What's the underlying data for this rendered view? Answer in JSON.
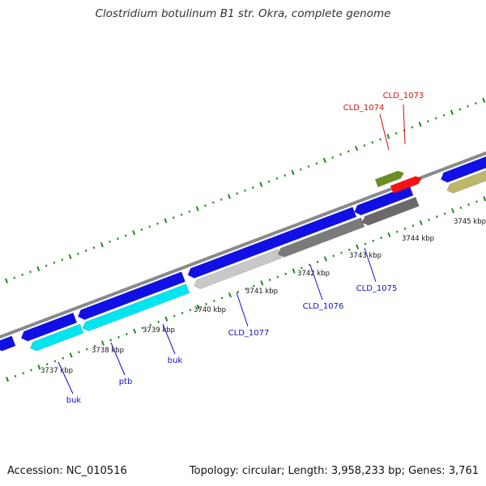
{
  "title": "Clostridium botulinum B1 str. Okra, complete genome",
  "footer": {
    "accession": "Accession: NC_010516",
    "summary": "Topology: circular; Length: 3,958,233 bp; Genes: 3,761"
  },
  "colors": {
    "backbone": "#8a8a8a",
    "tick": "#1f8a1f",
    "label_blue": "#1010c8",
    "label_red": "#cc1111"
  },
  "tick_labels": [
    "3737 kbp",
    "3738 kbp",
    "3739 kbp",
    "3740 kbp",
    "3741 kbp",
    "3742 kbp",
    "3743 kbp",
    "3744 kbp",
    "3745 kbp"
  ],
  "genes": [
    {
      "label": "buk",
      "track": "reverse",
      "color": "#00e5f0"
    },
    {
      "label": "ptb",
      "track": "reverse",
      "color": "#00e5f0"
    },
    {
      "label": "buk",
      "track": "reverse",
      "color": "#00e5f0"
    },
    {
      "label": "CLD_1077",
      "track": "reverse",
      "color": "#c8c8c8"
    },
    {
      "label": "CLD_1076",
      "track": "reverse",
      "color": "#7a7a7a"
    },
    {
      "label": "CLD_1075",
      "track": "reverse",
      "color": "#6a6a6a"
    },
    {
      "label": "CLD_1074",
      "track": "forward",
      "color": "#6b8e23"
    },
    {
      "label": "CLD_1073",
      "track": "forward",
      "color": "#ff1010"
    }
  ],
  "cds_blocks_color": "#1010e6",
  "extra_block_color": "#bdb76b"
}
